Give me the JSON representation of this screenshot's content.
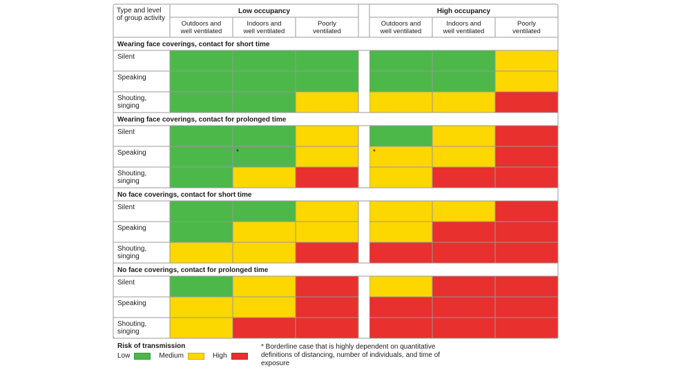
{
  "chart_data": {
    "type": "table",
    "title": "",
    "row_header_label": "Type and level of group activity",
    "column_groups": [
      {
        "name": "Low occupancy",
        "columns": [
          "Outdoors and well ventilated",
          "Indoors and well ventilated",
          "Poorly ventilated"
        ]
      },
      {
        "name": "High occupancy",
        "columns": [
          "Outdoors and well ventilated",
          "Indoors and well ventilated",
          "Poorly ventilated"
        ]
      }
    ],
    "sections": [
      {
        "name": "Wearing face coverings, contact for short time",
        "rows": [
          {
            "label": "Silent",
            "values": [
              "Low",
              "Low",
              "Low",
              "Low",
              "Low",
              "Medium"
            ]
          },
          {
            "label": "Speaking",
            "values": [
              "Low",
              "Low",
              "Low",
              "Low",
              "Low",
              "Medium"
            ]
          },
          {
            "label": "Shouting, singing",
            "values": [
              "Low",
              "Low",
              "Medium",
              "Medium",
              "Medium",
              "High"
            ]
          }
        ]
      },
      {
        "name": "Wearing face coverings, contact for prolonged time",
        "rows": [
          {
            "label": "Silent",
            "values": [
              "Low",
              "Low",
              "Medium",
              "Low",
              "Medium",
              "High"
            ]
          },
          {
            "label": "Speaking",
            "values": [
              "Low",
              "Low*",
              "Medium",
              "Medium*",
              "Medium",
              "High"
            ]
          },
          {
            "label": "Shouting, singing",
            "values": [
              "Low",
              "Medium",
              "High",
              "Medium",
              "High",
              "High"
            ]
          }
        ]
      },
      {
        "name": "No face coverings, contact for short time",
        "rows": [
          {
            "label": "Silent",
            "values": [
              "Low",
              "Low",
              "Medium",
              "Medium",
              "Medium",
              "High"
            ]
          },
          {
            "label": "Speaking",
            "values": [
              "Low",
              "Medium",
              "Medium",
              "Medium",
              "High",
              "High"
            ]
          },
          {
            "label": "Shouting, singing",
            "values": [
              "Medium",
              "Medium",
              "High",
              "High",
              "High",
              "High"
            ]
          }
        ]
      },
      {
        "name": "No face coverings, contact for prolonged time",
        "rows": [
          {
            "label": "Silent",
            "values": [
              "Low",
              "Medium",
              "High",
              "Medium",
              "High",
              "High"
            ]
          },
          {
            "label": "Speaking",
            "values": [
              "Medium",
              "Medium",
              "High",
              "High",
              "High",
              "High"
            ]
          },
          {
            "label": "Shouting, singing",
            "values": [
              "Medium",
              "High",
              "High",
              "High",
              "High",
              "High"
            ]
          }
        ]
      }
    ],
    "legend": {
      "title": "Risk of transmission",
      "items": [
        {
          "label": "Low",
          "color": "#4cb849"
        },
        {
          "label": "Medium",
          "color": "#fcd700"
        },
        {
          "label": "High",
          "color": "#e8302f"
        }
      ]
    },
    "footnote": "* Borderline case that is highly dependent on quantitative definitions of distancing, number of individuals, and time of exposure"
  }
}
